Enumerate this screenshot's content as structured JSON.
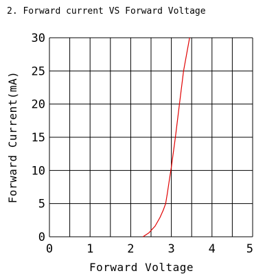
{
  "chart_data": {
    "type": "line",
    "title": "2. Forward current VS Forward Voltage",
    "xlabel": "Forward Voltage",
    "ylabel": "Forward Current(mA)",
    "xlim": [
      0,
      5
    ],
    "ylim": [
      0,
      30
    ],
    "x_ticks": [
      "0",
      "1",
      "2",
      "3",
      "4",
      "5"
    ],
    "y_ticks": [
      "0",
      "5",
      "10",
      "15",
      "20",
      "25",
      "30"
    ],
    "x_gridlines": [
      0,
      0.5,
      1,
      1.5,
      2,
      2.5,
      3,
      3.5,
      4,
      4.5,
      5
    ],
    "y_gridlines": [
      0,
      5,
      10,
      15,
      20,
      25,
      30
    ],
    "grid": true,
    "line_color": "#e00000",
    "series": [
      {
        "x": [
          2.3,
          2.45,
          2.6,
          2.72,
          2.8,
          2.86,
          2.9,
          2.95,
          3.0,
          3.1,
          3.2,
          3.3,
          3.45
        ],
        "y": [
          0,
          0.6,
          1.6,
          2.9,
          4.0,
          5.0,
          6.5,
          8.5,
          10.5,
          15.0,
          20.0,
          25.0,
          30.0
        ]
      }
    ]
  }
}
